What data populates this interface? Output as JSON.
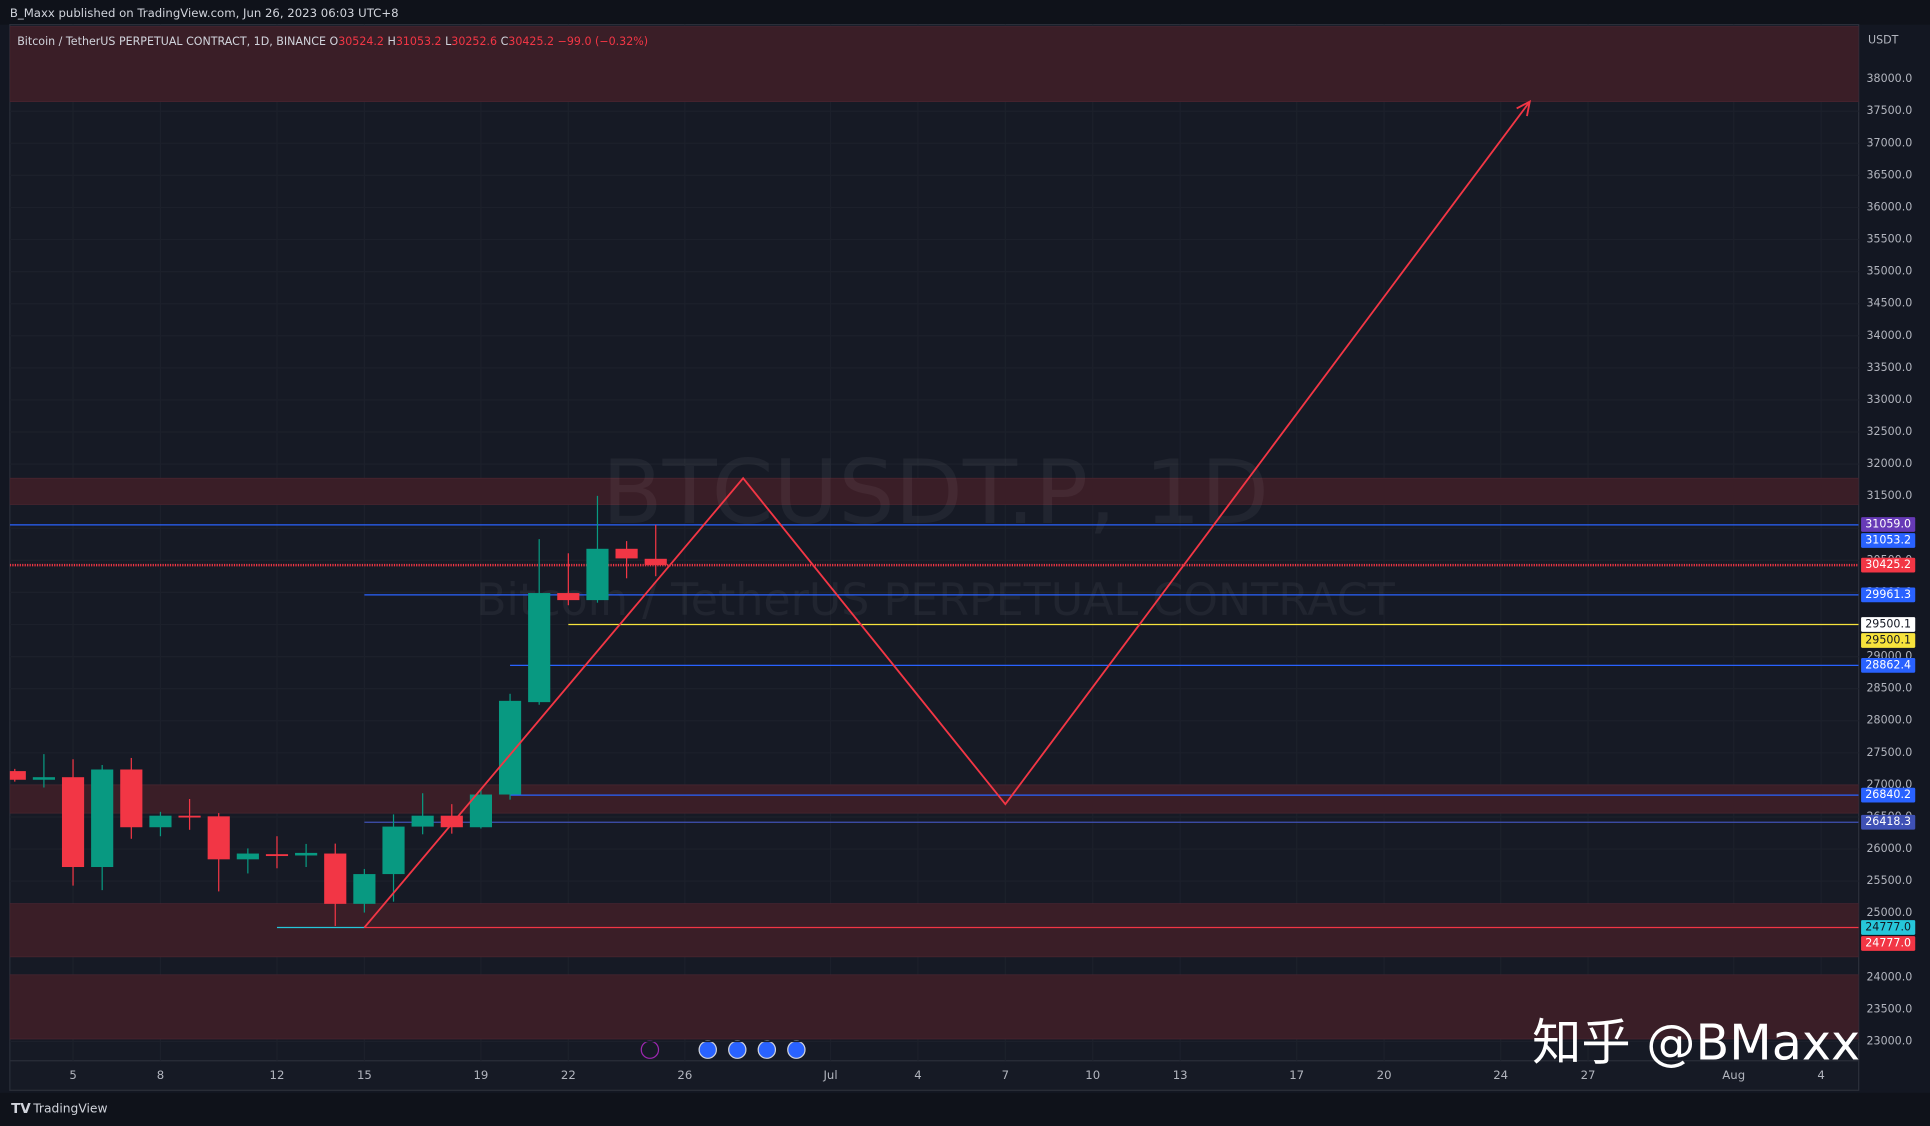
{
  "header": {
    "publisher": "B_Maxx published on TradingView.com, Jun 26, 2023 06:03 UTC+8"
  },
  "footer": {
    "brand": "TradingView"
  },
  "chart_data": {
    "type": "candlestick",
    "legend": {
      "symbol": "Bitcoin / TetherUS PERPETUAL CONTRACT, 1D, BINANCE",
      "o": "O",
      "h": "H",
      "l": "L",
      "c": "C",
      "change": "−99.0 (−0.32%)"
    },
    "watermark": {
      "symbol": "BTCUSDT.P, 1D",
      "description": "Bitcoin / TetherUS PERPETUAL CONTRACT"
    },
    "credit": "知乎 @BMaxx",
    "currency": "USDT",
    "categories": [
      null,
      null,
      "5",
      null,
      null,
      "8",
      null,
      null,
      null,
      "12",
      null,
      null,
      "15",
      null,
      null,
      null,
      "19",
      null,
      null,
      "22",
      null,
      null,
      null,
      "26",
      null,
      null,
      null,
      null,
      "Jul",
      null,
      null,
      "4",
      null,
      null,
      "7",
      null,
      null,
      "10",
      null,
      null,
      "13",
      null,
      null,
      null,
      "17",
      null,
      null,
      "20",
      null,
      null,
      null,
      "24",
      null,
      null,
      "27",
      null,
      null,
      null,
      null,
      "Aug",
      null,
      null,
      "4",
      null
    ],
    "open": [
      27215,
      27080,
      27120,
      25720,
      27240,
      26340,
      26520,
      26510,
      25840,
      25920,
      25900,
      25930,
      25146,
      25610,
      26350,
      26520,
      26340,
      26850,
      28290,
      29990,
      29880,
      30680,
      30524.2,
      null,
      null,
      null,
      null,
      null,
      null,
      null,
      null,
      null,
      null,
      null,
      null,
      null,
      null,
      null,
      null,
      null,
      null,
      null,
      null,
      null,
      null,
      null,
      null,
      null,
      null,
      null,
      null,
      null,
      null,
      null,
      null,
      null,
      null,
      null,
      null,
      null,
      null,
      null,
      null,
      null
    ],
    "high": [
      27250,
      27480,
      27400,
      27310,
      27420,
      26580,
      26780,
      26560,
      26010,
      26200,
      26080,
      26085,
      25690,
      26540,
      26870,
      26700,
      26930,
      28420,
      30830,
      30610,
      31505,
      30800,
      31053.2,
      null,
      null,
      null,
      null,
      null,
      null,
      null,
      null,
      null,
      null,
      null,
      null,
      null,
      null,
      null,
      null,
      null,
      null,
      null,
      null,
      null,
      null,
      null,
      null,
      null,
      null,
      null,
      null,
      null,
      null,
      null,
      null,
      null,
      null,
      null,
      null,
      null,
      null,
      null,
      null,
      null
    ],
    "low": [
      27050,
      26960,
      25430,
      25360,
      26160,
      26200,
      26300,
      25340,
      25620,
      25700,
      25720,
      24800,
      25010,
      25180,
      26230,
      26240,
      26320,
      26770,
      28250,
      29800,
      29840,
      30220,
      30252.6,
      null,
      null,
      null,
      null,
      null,
      null,
      null,
      null,
      null,
      null,
      null,
      null,
      null,
      null,
      null,
      null,
      null,
      null,
      null,
      null,
      null,
      null,
      null,
      null,
      null,
      null,
      null,
      null,
      null,
      null,
      null,
      null,
      null,
      null,
      null,
      null,
      null,
      null,
      null,
      null,
      null
    ],
    "close": [
      27080,
      27120,
      25720,
      27240,
      26340,
      26520,
      26500,
      25840,
      25930,
      25900,
      25940,
      25146,
      25610,
      26350,
      26520,
      26340,
      26850,
      28310,
      29990,
      29880,
      30680,
      30530,
      30425.2,
      null,
      null,
      null,
      null,
      null,
      null,
      null,
      null,
      null,
      null,
      null,
      null,
      null,
      null,
      null,
      null,
      null,
      null,
      null,
      null,
      null,
      null,
      null,
      null,
      null,
      null,
      null,
      null,
      null,
      null,
      null,
      null,
      null,
      null,
      null,
      null,
      null,
      null,
      null,
      null,
      null
    ],
    "up_color": "#089981",
    "down_color": "#f23645",
    "ylim": [
      22700,
      38850
    ],
    "yticks": [
      {
        "value": 38000,
        "label": "38000.0"
      },
      {
        "value": 37500,
        "label": "37500.0"
      },
      {
        "value": 37000,
        "label": "37000.0"
      },
      {
        "value": 36500,
        "label": "36500.0"
      },
      {
        "value": 36000,
        "label": "36000.0"
      },
      {
        "value": 35500,
        "label": "35500.0"
      },
      {
        "value": 35000,
        "label": "35000.0"
      },
      {
        "value": 34500,
        "label": "34500.0"
      },
      {
        "value": 34000,
        "label": "34000.0"
      },
      {
        "value": 33500,
        "label": "33500.0"
      },
      {
        "value": 33000,
        "label": "33000.0"
      },
      {
        "value": 32500,
        "label": "32500.0"
      },
      {
        "value": 32000,
        "label": "32000.0"
      },
      {
        "value": 31500,
        "label": "31500.0"
      },
      {
        "value": 31000,
        "label": "31000.0"
      },
      {
        "value": 30500,
        "label": "30500.0"
      },
      {
        "value": 30000,
        "label": "30000.0"
      },
      {
        "value": 29500,
        "label": "29500.0"
      },
      {
        "value": 29000,
        "label": "29000.0"
      },
      {
        "value": 28500,
        "label": "28500.0"
      },
      {
        "value": 28000,
        "label": "28000.0"
      },
      {
        "value": 27500,
        "label": "27500.0"
      },
      {
        "value": 27000,
        "label": "27000.0"
      },
      {
        "value": 26500,
        "label": "26500.0"
      },
      {
        "value": 26000,
        "label": "26000.0"
      },
      {
        "value": 25500,
        "label": "25500.0"
      },
      {
        "value": 25000,
        "label": "25000.0"
      },
      {
        "value": 24500,
        "label": "24500.0"
      },
      {
        "value": 24000,
        "label": "24000.0"
      },
      {
        "value": 23500,
        "label": "23500.0"
      },
      {
        "value": 23000,
        "label": "23000.0"
      }
    ],
    "grid": true,
    "zone_color": "#3a1e27",
    "zones": [
      [
        37650,
        38820
      ],
      [
        31370,
        31780
      ],
      [
        26560,
        27000
      ],
      [
        24320,
        25150
      ],
      [
        23040,
        24040
      ]
    ],
    "hlines": [
      {
        "value": 31059.0,
        "label": "31059.0",
        "color": "#673ab7"
      },
      {
        "value": 31053.2,
        "color": "#2962ff"
      },
      {
        "value": 30425.2,
        "color": "#f23645"
      },
      {
        "value": 29961.3,
        "color": "#2962ff"
      },
      {
        "value": 29500.1,
        "color": "#ffffff"
      },
      {
        "value": 29500.1,
        "color": "#f7e33c"
      },
      {
        "value": 28862.4,
        "color": "#2962ff"
      },
      {
        "value": 26840.2,
        "color": "#2962ff"
      },
      {
        "value": 26418.3,
        "color": "#3f51b5"
      },
      {
        "value": 24777.0,
        "label": "24777.0",
        "color": "#26c6da"
      },
      {
        "value": 24777.0,
        "label": "24777.0",
        "color": "#f23645"
      }
    ],
    "projection": [
      24777,
      31780,
      26700,
      37650
    ],
    "projection_color": "#f23645"
  }
}
